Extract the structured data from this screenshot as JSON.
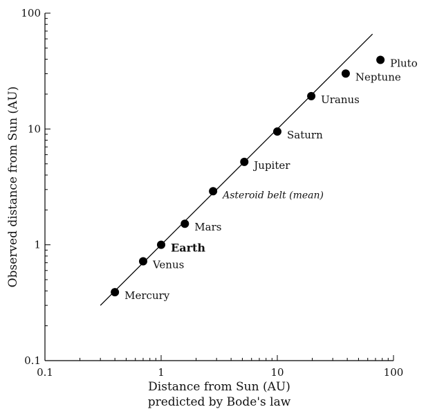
{
  "chart_data": {
    "type": "scatter",
    "scale": "log-log",
    "xlim": [
      0.1,
      100
    ],
    "ylim": [
      0.1,
      100
    ],
    "xticks": [
      {
        "value": 0.1,
        "label": "0.1"
      },
      {
        "value": 1,
        "label": "1"
      },
      {
        "value": 10,
        "label": "10"
      },
      {
        "value": 100,
        "label": "100"
      }
    ],
    "yticks": [
      {
        "value": 0.1,
        "label": "0.1"
      },
      {
        "value": 1,
        "label": "1"
      },
      {
        "value": 10,
        "label": "10"
      },
      {
        "value": 100,
        "label": "100"
      }
    ],
    "xlabel": [
      "Distance from Sun (AU)",
      "predicted by Bode's law"
    ],
    "ylabel": "Observed distance from Sun (AU)",
    "grid": false,
    "reference_line": {
      "from": [
        0.3,
        0.3
      ],
      "to": [
        66,
        66
      ]
    },
    "points": [
      {
        "name": "Mercury",
        "x": 0.4,
        "y": 0.39,
        "style": "normal"
      },
      {
        "name": "Venus",
        "x": 0.7,
        "y": 0.72,
        "style": "normal"
      },
      {
        "name": "Earth",
        "x": 1.0,
        "y": 1.0,
        "style": "bold"
      },
      {
        "name": "Mars",
        "x": 1.6,
        "y": 1.52,
        "style": "normal"
      },
      {
        "name": "Asteroid belt (mean)",
        "x": 2.8,
        "y": 2.9,
        "style": "italic"
      },
      {
        "name": "Jupiter",
        "x": 5.2,
        "y": 5.2,
        "style": "normal"
      },
      {
        "name": "Saturn",
        "x": 10.0,
        "y": 9.5,
        "style": "normal"
      },
      {
        "name": "Uranus",
        "x": 19.6,
        "y": 19.2,
        "style": "normal"
      },
      {
        "name": "Neptune",
        "x": 38.8,
        "y": 30.1,
        "style": "normal"
      },
      {
        "name": "Pluto",
        "x": 77.2,
        "y": 39.5,
        "style": "normal"
      }
    ]
  },
  "colors": {
    "ink": "#000000",
    "background": "#ffffff"
  }
}
